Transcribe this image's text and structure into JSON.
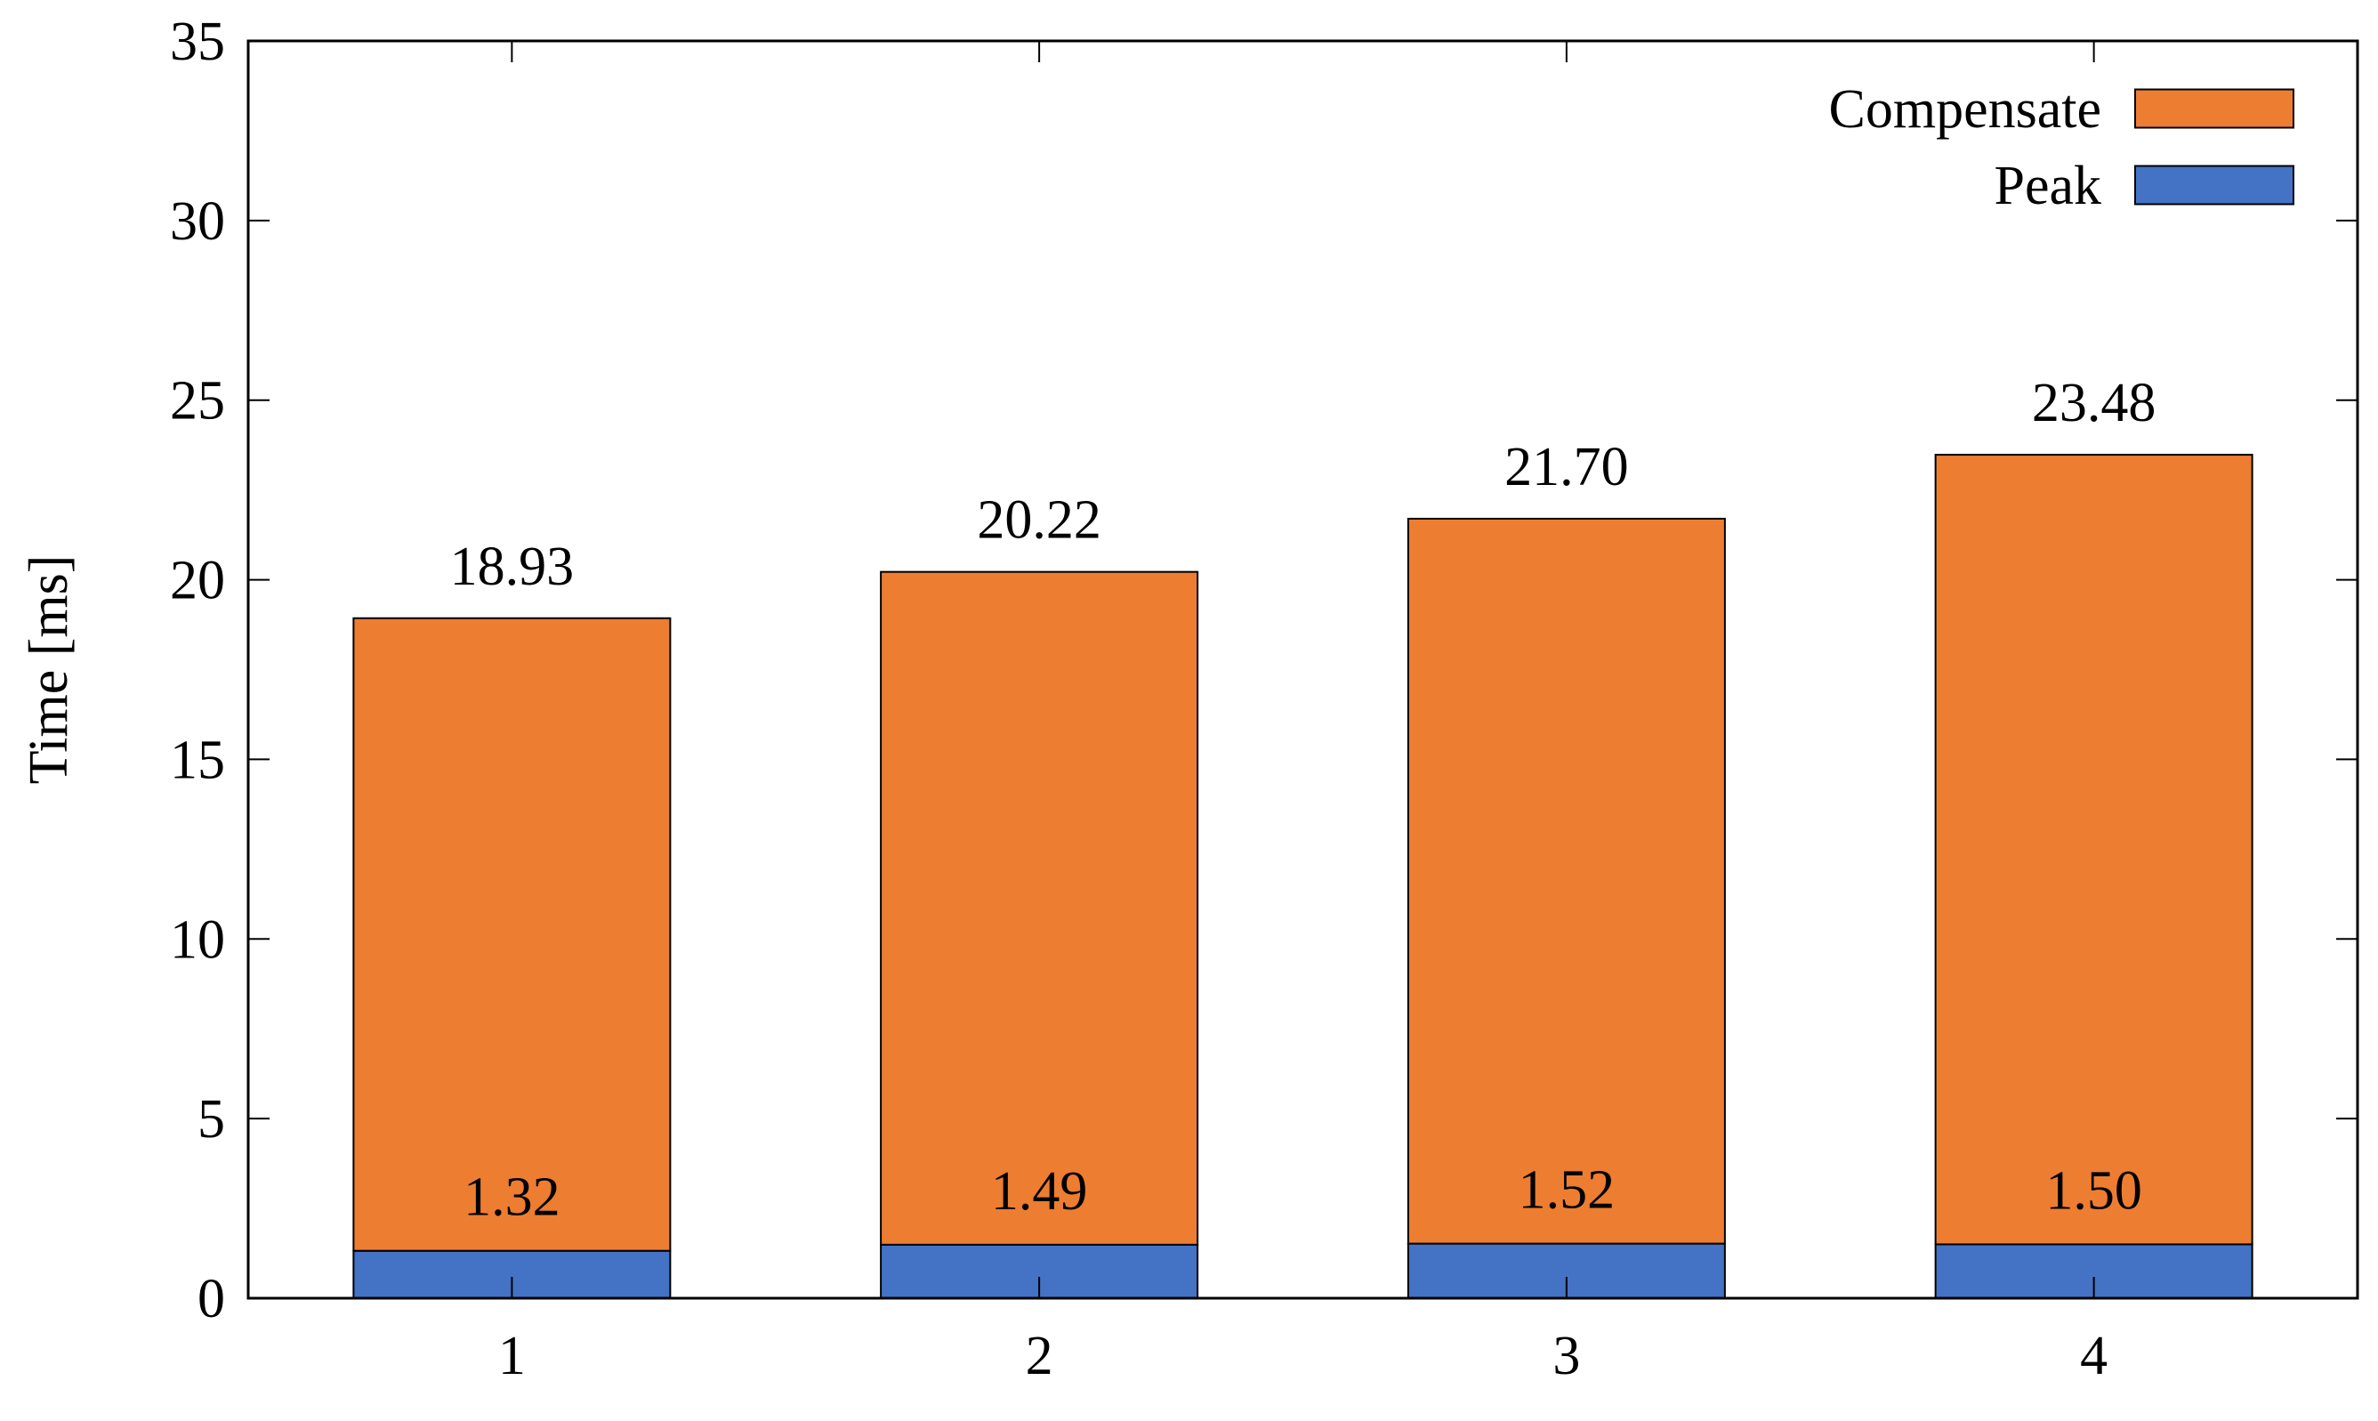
{
  "chart_data": {
    "type": "bar",
    "stacked": true,
    "categories": [
      "1",
      "2",
      "3",
      "4"
    ],
    "series": [
      {
        "name": "Peak",
        "values": [
          1.32,
          1.49,
          1.52,
          1.5
        ],
        "color": "#4472c4",
        "labels": [
          "1.32",
          "1.49",
          "1.52",
          "1.50"
        ]
      },
      {
        "name": "Compensate",
        "values": [
          17.61,
          18.73,
          20.18,
          21.98
        ],
        "color": "#ed7d31"
      }
    ],
    "totals": [
      18.93,
      20.22,
      21.7,
      23.48
    ],
    "total_labels": [
      "18.93",
      "20.22",
      "21.70",
      "23.48"
    ],
    "xlabel": "",
    "ylabel": "Time [ms]",
    "ylim": [
      0,
      35
    ],
    "yticks": [
      "0",
      "5",
      "10",
      "15",
      "20",
      "25",
      "30",
      "35"
    ],
    "ytick_values": [
      0,
      5,
      10,
      15,
      20,
      25,
      30,
      35
    ],
    "grid": false,
    "legend_position": "top-right",
    "legend_order": [
      "Compensate",
      "Peak"
    ]
  }
}
